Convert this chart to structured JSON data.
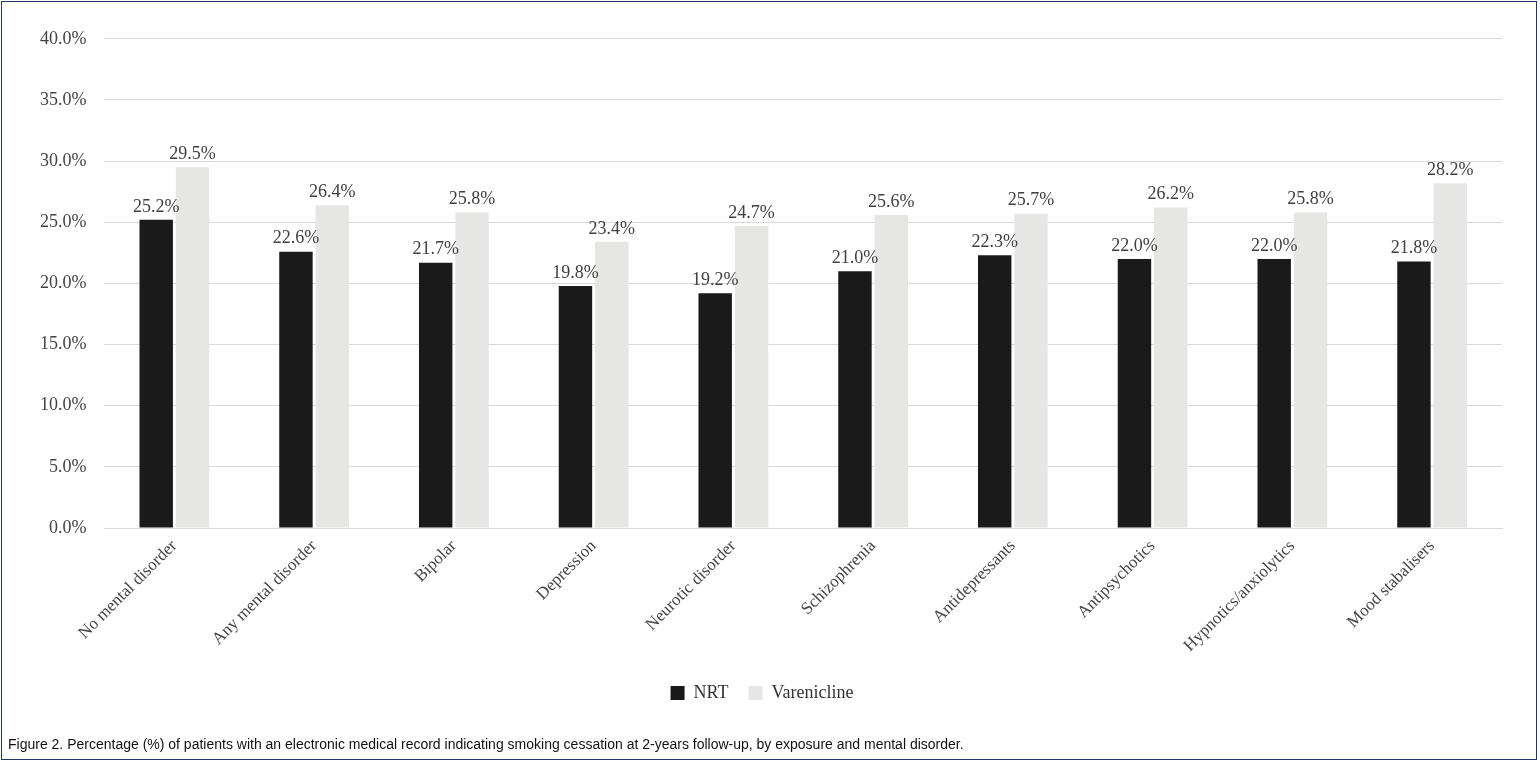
{
  "chart_data": {
    "type": "bar",
    "categories": [
      "No mental disorder",
      "Any mental disorder",
      "Bipolar",
      "Depression",
      "Neurotic disorder",
      "Schizophrenia",
      "Antidepressants",
      "Antipsychotics",
      "Hypnotics/anxiolytics",
      "Mood stabalisers"
    ],
    "series": [
      {
        "name": "NRT",
        "color": "#1a1a1a",
        "values": [
          25.2,
          22.6,
          21.7,
          19.8,
          19.2,
          21.0,
          22.3,
          22.0,
          22.0,
          21.8
        ],
        "value_labels": [
          "25.2%",
          "22.6%",
          "21.7%",
          "19.8%",
          "19.2%",
          "21.0%",
          "22.3%",
          "22.0%",
          "22.0%",
          "21.8%"
        ]
      },
      {
        "name": "Varenicline",
        "color": "#e6e6e4",
        "values": [
          29.5,
          26.4,
          25.8,
          23.4,
          24.7,
          25.6,
          25.7,
          26.2,
          25.8,
          28.2
        ],
        "value_labels": [
          "29.5%",
          "26.4%",
          "25.8%",
          "23.4%",
          "24.7%",
          "25.6%",
          "25.7%",
          "26.2%",
          "25.8%",
          "28.2%"
        ]
      }
    ],
    "ylim": [
      0,
      40
    ],
    "yticks": [
      {
        "value": 0,
        "label": "0.0%"
      },
      {
        "value": 5,
        "label": "5.0%"
      },
      {
        "value": 10,
        "label": "10.0%"
      },
      {
        "value": 15,
        "label": "15.0%"
      },
      {
        "value": 20,
        "label": "20.0%"
      },
      {
        "value": 25,
        "label": "25.0%"
      },
      {
        "value": 30,
        "label": "30.0%"
      },
      {
        "value": 35,
        "label": "35.0%"
      },
      {
        "value": 40,
        "label": "40.0%"
      }
    ],
    "grid": "y",
    "legend": "bottom",
    "annotations": [
      "Figure 2.  Percentage (%) of patients with an electronic medical record indicating smoking cessation at 2-years follow-up, by exposure and mental disorder."
    ]
  }
}
